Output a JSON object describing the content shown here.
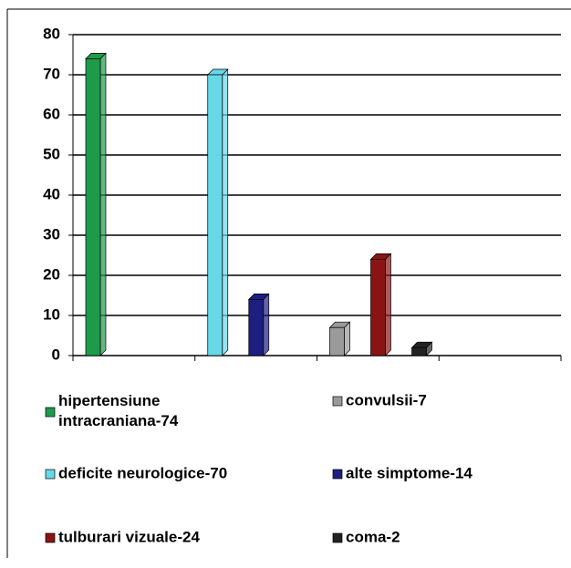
{
  "chart_data": {
    "type": "bar3d",
    "categories": [
      null,
      null,
      null,
      null
    ],
    "ylim": [
      0,
      80
    ],
    "yticks": [
      0,
      10,
      20,
      30,
      40,
      50,
      60,
      70,
      80
    ],
    "grid": true,
    "series": [
      {
        "name": "hipertensiune intracraniana-74",
        "color": "#1f9a4a",
        "values": [
          74,
          null,
          null,
          null
        ]
      },
      {
        "name": "convulsii-7",
        "color": "#9a9a9a",
        "values": [
          null,
          null,
          7,
          null
        ]
      },
      {
        "name": "deficite neurologice-70",
        "color": "#66d8e8",
        "values": [
          null,
          70,
          null,
          null
        ]
      },
      {
        "name": "alte simptome-14",
        "color": "#1c1f80",
        "values": [
          null,
          14,
          null,
          null
        ]
      },
      {
        "name": "tulburari vizuale-24",
        "color": "#8a1414",
        "values": [
          null,
          null,
          24,
          null
        ]
      },
      {
        "name": "coma-2",
        "color": "#222222",
        "values": [
          null,
          null,
          2,
          null
        ]
      }
    ]
  }
}
